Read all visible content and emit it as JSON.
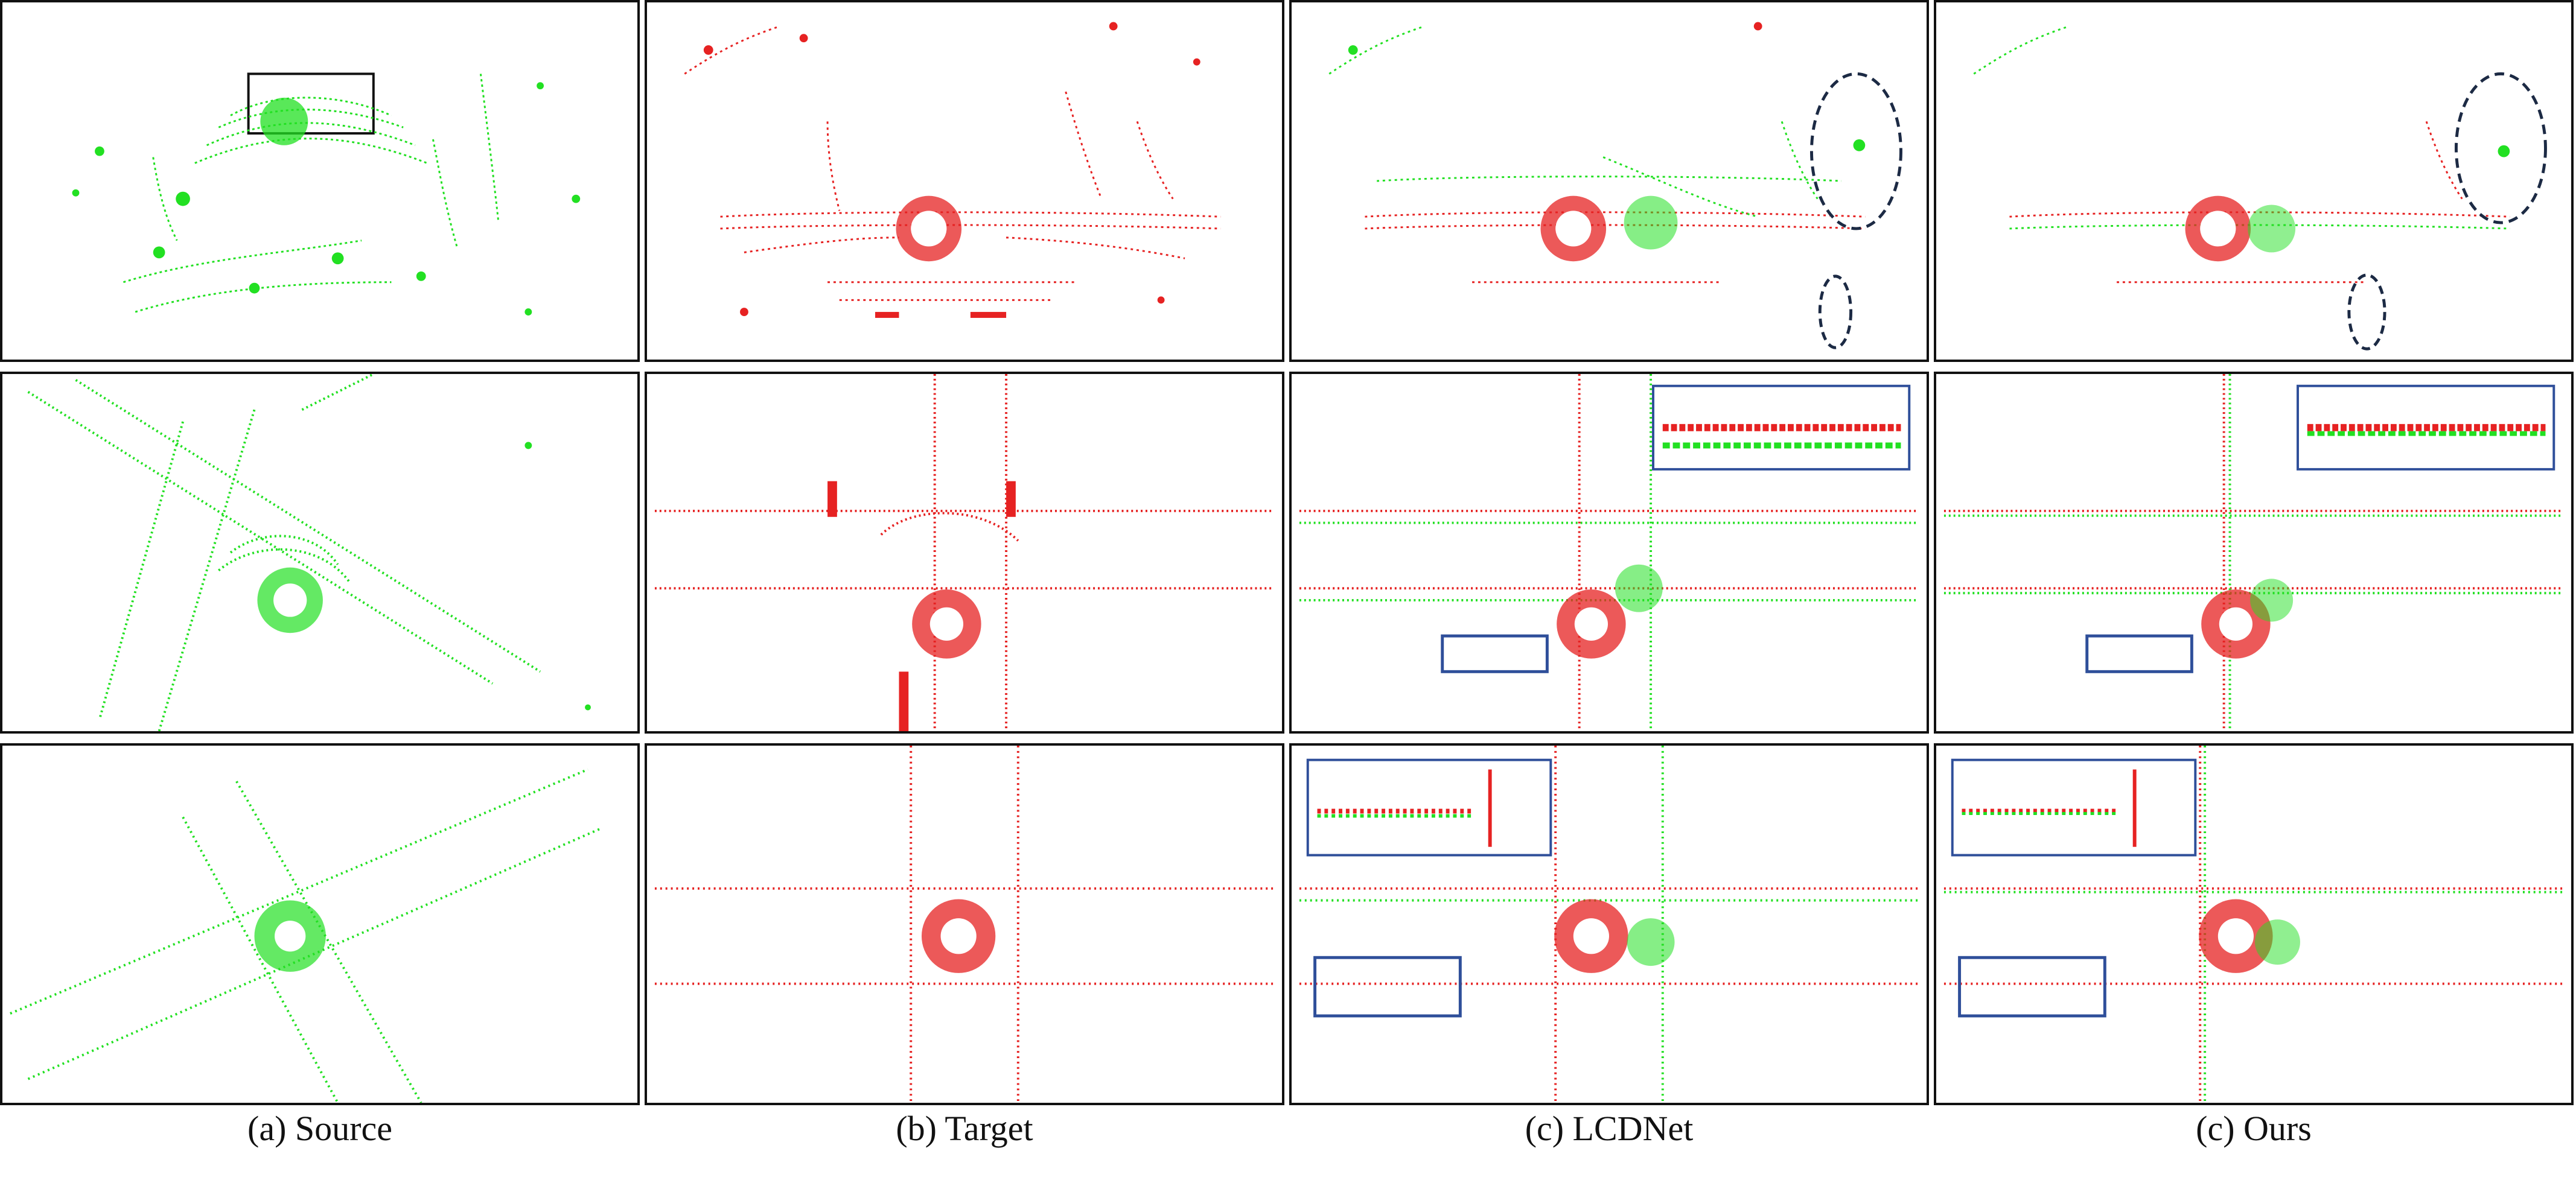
{
  "figure": {
    "columns": [
      {
        "id": "source",
        "caption": "(a) Source",
        "point_color": "#22e022"
      },
      {
        "id": "target",
        "caption": "(b) Target",
        "point_color": "#e62222"
      },
      {
        "id": "lcdnet",
        "caption": "(c) LCDNet",
        "point_color": "mixed"
      },
      {
        "id": "ours",
        "caption": "(c) Ours",
        "point_color": "mixed"
      }
    ],
    "colors": {
      "source_points": "#22e022",
      "target_points": "#e62222",
      "highlight_box": "#2f4f9a",
      "highlight_ellipse": "#1c2a44"
    }
  }
}
